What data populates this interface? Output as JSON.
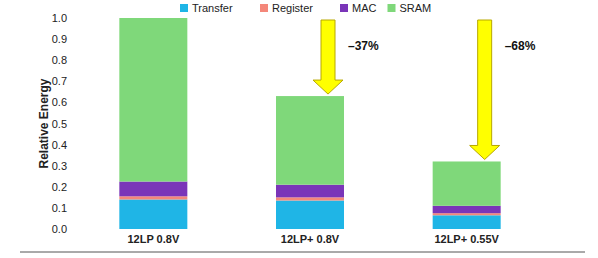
{
  "chart_data": {
    "type": "bar",
    "stacked": true,
    "grid": false,
    "legend": "top",
    "y_label": "Relative Energy",
    "categories": [
      "12LP 0.8V",
      "12LP+ 0.8V",
      "12LP+ 0.55V"
    ],
    "series": [
      {
        "name": "Transfer",
        "color": "#1fb5e6",
        "values": [
          0.14,
          0.135,
          0.065
        ]
      },
      {
        "name": "Register",
        "color": "#f4877a",
        "values": [
          0.015,
          0.015,
          0.01
        ]
      },
      {
        "name": "MAC",
        "color": "#7a35b8",
        "values": [
          0.07,
          0.06,
          0.035
        ]
      },
      {
        "name": "SRAM",
        "color": "#7fd87a",
        "values": [
          0.775,
          0.42,
          0.21
        ]
      }
    ],
    "ylim": [
      0,
      1.0
    ],
    "yticks": [
      {
        "value": 0,
        "label": "0.0"
      },
      0.1,
      0.2,
      0.3,
      0.4,
      0.5,
      0.6,
      0.7,
      0.8,
      0.9,
      {
        "value": 1.0,
        "label": "1.0"
      }
    ],
    "annotations": [
      {
        "text": "–37%",
        "x": "12LP+ 0.8V"
      },
      {
        "text": "–68%",
        "x": "12LP+ 0.55V"
      }
    ]
  }
}
